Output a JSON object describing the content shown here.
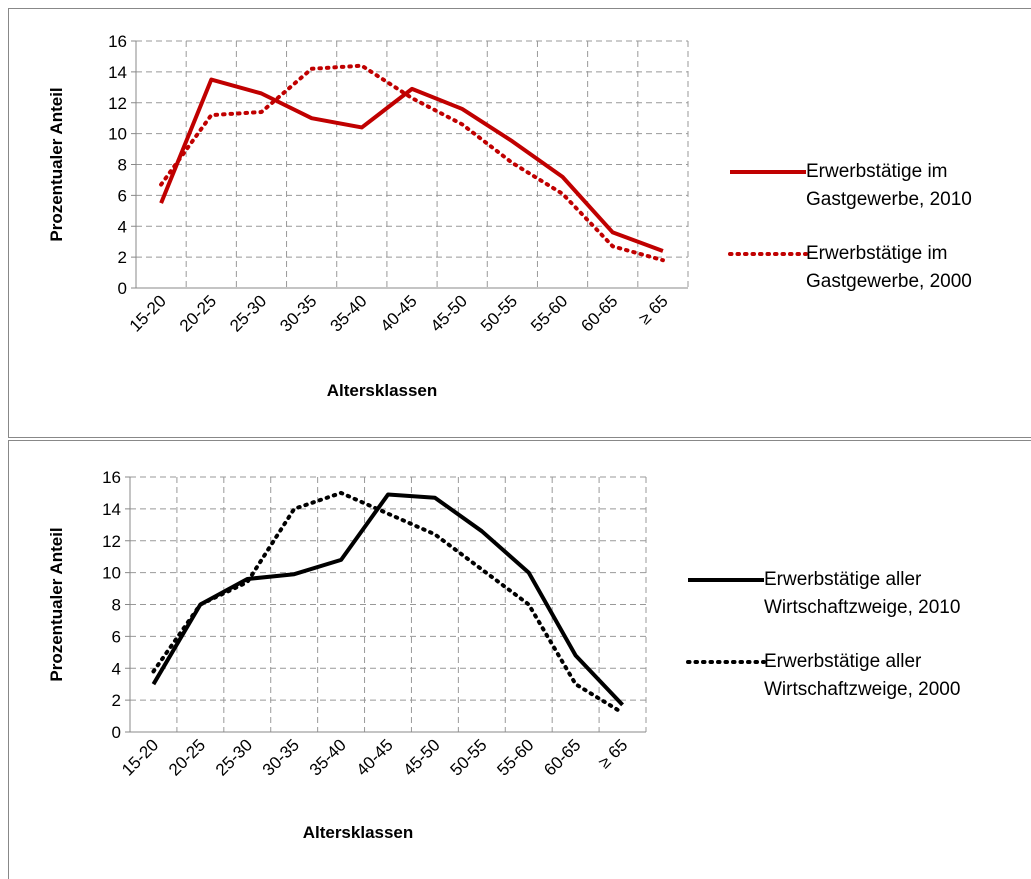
{
  "chart_data": [
    {
      "type": "line",
      "xlabel": "Altersklassen",
      "ylabel": "Prozentualer Anteil",
      "categories": [
        "15-20",
        "20-25",
        "25-30",
        "30-35",
        "35-40",
        "40-45",
        "45-50",
        "50-55",
        "55-60",
        "60-65",
        "≥ 65"
      ],
      "ylim": [
        0,
        16
      ],
      "yticks": [
        0,
        2,
        4,
        6,
        8,
        10,
        12,
        14,
        16
      ],
      "grid": true,
      "series": [
        {
          "name": "Erwerbstätige im Gastgewerbe, 2010",
          "color": "#c00000",
          "line_style": "solid",
          "values": [
            5.5,
            13.5,
            12.6,
            11.0,
            10.4,
            12.9,
            11.6,
            9.5,
            7.2,
            3.6,
            2.4
          ]
        },
        {
          "name": "Erwerbstätige im Gastgewerbe, 2000",
          "color": "#c00000",
          "line_style": "dotted",
          "values": [
            6.7,
            11.2,
            11.4,
            14.2,
            14.4,
            12.3,
            10.6,
            8.1,
            6.1,
            2.7,
            1.8
          ]
        }
      ]
    },
    {
      "type": "line",
      "xlabel": "Altersklassen",
      "ylabel": "Prozentualer Anteil",
      "categories": [
        "15-20",
        "20-25",
        "25-30",
        "30-35",
        "35-40",
        "40-45",
        "45-50",
        "50-55",
        "55-60",
        "60-65",
        "≥ 65"
      ],
      "ylim": [
        0,
        16
      ],
      "yticks": [
        0,
        2,
        4,
        6,
        8,
        10,
        12,
        14,
        16
      ],
      "grid": true,
      "series": [
        {
          "name": "Erwerbstätige aller Wirtschaftzweige, 2010",
          "color": "#000000",
          "line_style": "solid",
          "values": [
            3.0,
            8.0,
            9.6,
            9.9,
            10.8,
            14.9,
            14.7,
            12.6,
            10.0,
            4.8,
            1.7
          ]
        },
        {
          "name": "Erwerbstätige aller Wirtschaftzweige, 2000",
          "color": "#000000",
          "line_style": "dotted",
          "values": [
            3.8,
            8.0,
            9.4,
            14.0,
            15.0,
            13.7,
            12.4,
            10.2,
            8.0,
            3.0,
            1.2
          ]
        }
      ]
    }
  ]
}
